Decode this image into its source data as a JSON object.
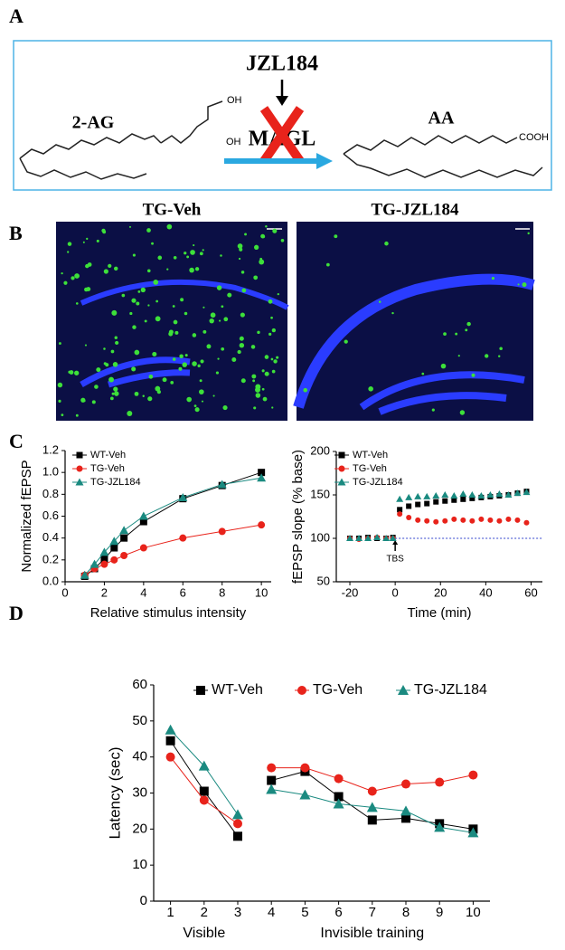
{
  "panel_labels": [
    "A",
    "B",
    "C",
    "D"
  ],
  "diagram": {
    "inhibitor": "JZL184",
    "substrate": "2-AG",
    "enzyme": "MAGL",
    "product": "AA",
    "substrate_groups": [
      "OH",
      "OH"
    ],
    "product_group": "COOH"
  },
  "images": {
    "titles": [
      "TG-Veh",
      "TG-JZL184"
    ]
  },
  "chart_data": [
    {
      "type": "scatter",
      "connect_points": true,
      "ylabel": "Normalized fEPSP",
      "xlabel": "Relative stimulus intensity",
      "x": [
        1,
        1.5,
        2,
        2.5,
        3,
        4,
        6,
        8,
        10
      ],
      "xlim": [
        0,
        10.5
      ],
      "xticks": [
        0,
        2,
        4,
        6,
        8,
        10
      ],
      "ylim": [
        0,
        1.2
      ],
      "yticks": [
        {
          "value": 0,
          "label": "0.0"
        },
        0.2,
        0.4,
        0.6,
        0.8,
        {
          "value": 1,
          "label": "1.0"
        },
        1.2
      ],
      "legend": "upper left",
      "series": [
        {
          "name": "WT-Veh",
          "color": "#000000",
          "marker": "square",
          "values": [
            0.05,
            0.12,
            0.21,
            0.31,
            0.4,
            0.55,
            0.76,
            0.88,
            1.0
          ]
        },
        {
          "name": "TG-Veh",
          "color": "#e8231b",
          "marker": "circle",
          "values": [
            0.06,
            0.12,
            0.16,
            0.2,
            0.24,
            0.31,
            0.4,
            0.46,
            0.52
          ]
        },
        {
          "name": "TG-JZL184",
          "color": "#1a8a80",
          "marker": "triangle",
          "values": [
            0.06,
            0.16,
            0.27,
            0.37,
            0.47,
            0.6,
            0.77,
            0.89,
            0.95
          ]
        }
      ]
    },
    {
      "type": "scatter",
      "connect_points": false,
      "ylabel": "fEPSP slope (% base)",
      "xlabel": "Time (min)",
      "x": [
        -20,
        -16,
        -12,
        -8,
        -4,
        -1,
        2,
        6,
        10,
        14,
        18,
        22,
        26,
        30,
        34,
        38,
        42,
        46,
        50,
        54,
        58
      ],
      "xlim": [
        -26,
        65
      ],
      "xticks": [
        -20,
        0,
        20,
        40,
        60
      ],
      "ylim": [
        50,
        200
      ],
      "yticks": [
        50,
        100,
        150,
        200
      ],
      "reference_y": 100,
      "annotations": [
        {
          "text": "TBS",
          "x": 0
        }
      ],
      "legend": "upper left",
      "series": [
        {
          "name": "WT-Veh",
          "color": "#000000",
          "marker": "square",
          "values": [
            100,
            100,
            101,
            100,
            100,
            101,
            133,
            137,
            139,
            140,
            142,
            143,
            144,
            145,
            146,
            147,
            148,
            149,
            150,
            152,
            154
          ]
        },
        {
          "name": "TG-Veh",
          "color": "#e8231b",
          "marker": "circle",
          "values": [
            100,
            99,
            100,
            101,
            100,
            100,
            128,
            124,
            121,
            120,
            119,
            120,
            122,
            121,
            120,
            122,
            121,
            120,
            122,
            121,
            118
          ]
        },
        {
          "name": "TG-JZL184",
          "color": "#1a8a80",
          "marker": "triangle",
          "values": [
            100,
            100,
            100,
            101,
            100,
            100,
            145,
            147,
            148,
            148,
            149,
            150,
            149,
            151,
            150,
            149,
            150,
            151,
            150,
            152,
            153
          ]
        }
      ]
    },
    {
      "type": "scatter",
      "connect_points": true,
      "ylabel": "Latency (sec)",
      "x": [
        1,
        2,
        3,
        4,
        5,
        6,
        7,
        8,
        9,
        10
      ],
      "x_groups": [
        {
          "label": "Visible",
          "range": [
            1,
            3
          ]
        },
        {
          "label": "Invisible training",
          "range": [
            4,
            10
          ]
        }
      ],
      "xlim": [
        0.5,
        10.5
      ],
      "xticks": [
        1,
        2,
        3,
        4,
        5,
        6,
        7,
        8,
        9,
        10
      ],
      "ylim": [
        0,
        60
      ],
      "yticks": [
        0,
        10,
        20,
        30,
        40,
        50,
        60
      ],
      "legend": "upper center",
      "series": [
        {
          "name": "WT-Veh",
          "color": "#000000",
          "marker": "square",
          "values": [
            44.5,
            30.5,
            18,
            33.5,
            36,
            29,
            22.5,
            23,
            21.5,
            20
          ]
        },
        {
          "name": "TG-Veh",
          "color": "#e8231b",
          "marker": "circle",
          "values": [
            40,
            28,
            21.5,
            37,
            37,
            34,
            30.5,
            32.5,
            33,
            35
          ]
        },
        {
          "name": "TG-JZL184",
          "color": "#1a8a80",
          "marker": "triangle",
          "values": [
            47.5,
            37.5,
            24,
            31,
            29.5,
            27,
            26,
            25,
            20.5,
            19
          ]
        }
      ]
    }
  ]
}
